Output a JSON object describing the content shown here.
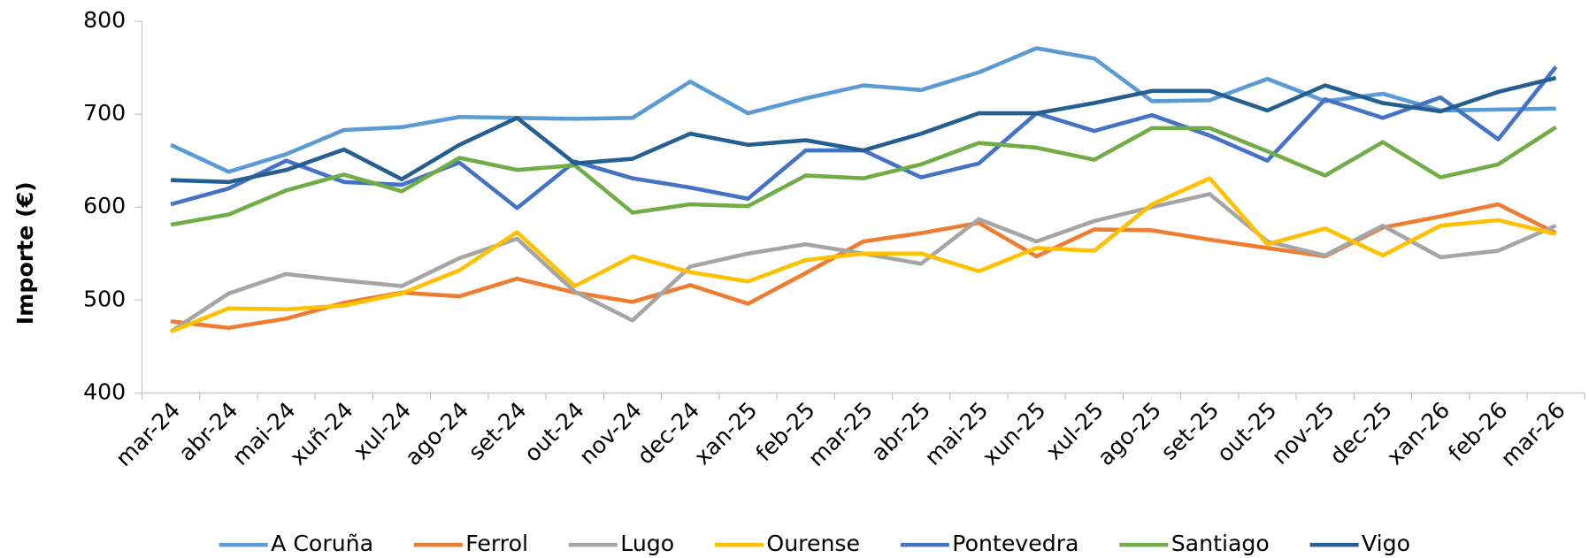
{
  "chart_data": {
    "type": "line",
    "y_label": "Importe (€)",
    "categories": [
      "mar-24",
      "abr-24",
      "mai-24",
      "xuñ-24",
      "xul-24",
      "ago-24",
      "set-24",
      "out-24",
      "nov-24",
      "dec-24",
      "xan-25",
      "feb-25",
      "mar-25",
      "abr-25",
      "mai-25",
      "xun-25",
      "xul-25",
      "ago-25",
      "set-25",
      "out-25",
      "nov-25",
      "dec-25",
      "xan-26",
      "feb-26",
      "mar-26"
    ],
    "series": [
      {
        "name": "A Coruña",
        "color": "#5b9bd5",
        "values": [
          667,
          638,
          657,
          683,
          686,
          697,
          696,
          695,
          696,
          735,
          701,
          717,
          731,
          726,
          745,
          771,
          760,
          714,
          715,
          738,
          714,
          722,
          704,
          705,
          706
        ]
      },
      {
        "name": "Ferrol",
        "color": "#ed7d31",
        "values": [
          477,
          470,
          480,
          497,
          508,
          504,
          523,
          508,
          498,
          516,
          496,
          529,
          563,
          572,
          583,
          547,
          576,
          575,
          565,
          556,
          547,
          578,
          590,
          603,
          572
        ]
      },
      {
        "name": "Lugo",
        "color": "#a5a5a5",
        "values": [
          466,
          507,
          528,
          521,
          515,
          545,
          566,
          509,
          478,
          536,
          550,
          560,
          550,
          539,
          587,
          563,
          585,
          600,
          614,
          563,
          548,
          580,
          546,
          553,
          580
        ]
      },
      {
        "name": "Ourense",
        "color": "#ffc000",
        "values": [
          466,
          491,
          490,
          494,
          507,
          532,
          573,
          515,
          547,
          530,
          520,
          543,
          550,
          550,
          531,
          556,
          553,
          603,
          631,
          560,
          577,
          548,
          580,
          586,
          571
        ]
      },
      {
        "name": "Pontevedra",
        "color": "#4472c4",
        "values": [
          603,
          620,
          650,
          627,
          624,
          648,
          599,
          649,
          631,
          621,
          609,
          661,
          661,
          632,
          647,
          701,
          682,
          699,
          677,
          650,
          716,
          696,
          718,
          673,
          751
        ]
      },
      {
        "name": "Santiago",
        "color": "#70ad47",
        "values": [
          581,
          592,
          618,
          635,
          617,
          653,
          640,
          645,
          594,
          603,
          601,
          634,
          631,
          646,
          669,
          664,
          651,
          685,
          685,
          660,
          634,
          670,
          632,
          646,
          686
        ]
      },
      {
        "name": "Vigo",
        "color": "#255e91",
        "values": [
          629,
          627,
          640,
          662,
          630,
          667,
          696,
          647,
          652,
          679,
          667,
          672,
          661,
          679,
          701,
          701,
          712,
          725,
          725,
          704,
          731,
          712,
          703,
          724,
          739
        ]
      }
    ],
    "ylim": [
      400,
      800
    ],
    "yticks": [
      400,
      500,
      600,
      700,
      800
    ],
    "legend": "bottom"
  }
}
